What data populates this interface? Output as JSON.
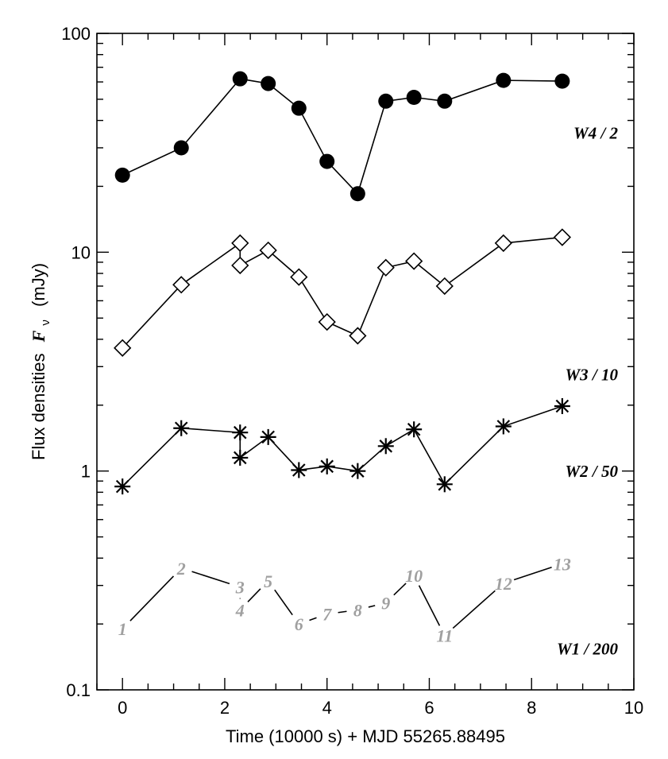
{
  "chart_data": {
    "type": "line",
    "xlabel": "Time (10000 s) + MJD 55265.88495",
    "ylabel_prefix": "Flux  densities",
    "ylabel_symbol": "F",
    "ylabel_subscript": "ν",
    "ylabel_unit": "(mJy)",
    "xlim": [
      -0.5,
      10
    ],
    "ylim": [
      0.1,
      100
    ],
    "yscale": "log",
    "grid": false,
    "x_ticks": [
      "0",
      "2",
      "4",
      "6",
      "8",
      "10"
    ],
    "y_ticks": [
      "0.1",
      "1",
      "10",
      "100"
    ],
    "series": [
      {
        "name": "W4 / 2",
        "marker": "filled-circle",
        "x": [
          0.0,
          1.15,
          2.3,
          2.85,
          3.45,
          4.0,
          4.6,
          5.15,
          5.7,
          6.3,
          7.45,
          8.6
        ],
        "y": [
          22.5,
          30.0,
          62.0,
          59.0,
          45.5,
          26.0,
          18.5,
          49.0,
          51.0,
          49.0,
          61.0,
          60.5
        ]
      },
      {
        "name": "W3 / 10",
        "marker": "open-diamond",
        "x": [
          0.0,
          1.15,
          2.3,
          2.3,
          2.85,
          3.45,
          4.0,
          4.6,
          5.15,
          5.7,
          6.3,
          7.45,
          8.6
        ],
        "y": [
          3.65,
          7.1,
          11.0,
          8.7,
          10.2,
          7.7,
          4.8,
          4.15,
          8.5,
          9.1,
          7.0,
          11.0,
          11.7
        ]
      },
      {
        "name": "W2 / 50",
        "marker": "asterisk",
        "x": [
          0.0,
          1.15,
          2.3,
          2.3,
          2.85,
          3.45,
          4.0,
          4.6,
          5.15,
          5.7,
          6.3,
          7.45,
          8.6
        ],
        "y": [
          0.85,
          1.57,
          1.5,
          1.15,
          1.43,
          1.01,
          1.05,
          1.0,
          1.3,
          1.55,
          0.87,
          1.6,
          1.98
        ]
      },
      {
        "name": "W1 / 200",
        "marker": "number-label",
        "labels": [
          "1",
          "2",
          "3",
          "4",
          "5",
          "6",
          "7",
          "8",
          "9",
          "10",
          "11",
          "12",
          "13"
        ],
        "x": [
          0.0,
          1.15,
          2.3,
          2.3,
          2.85,
          3.45,
          4.0,
          4.6,
          5.15,
          5.7,
          6.3,
          7.45,
          8.6
        ],
        "y": [
          0.19,
          0.36,
          0.295,
          0.232,
          0.315,
          0.2,
          0.222,
          0.232,
          0.25,
          0.333,
          0.177,
          0.307,
          0.377
        ]
      }
    ]
  }
}
